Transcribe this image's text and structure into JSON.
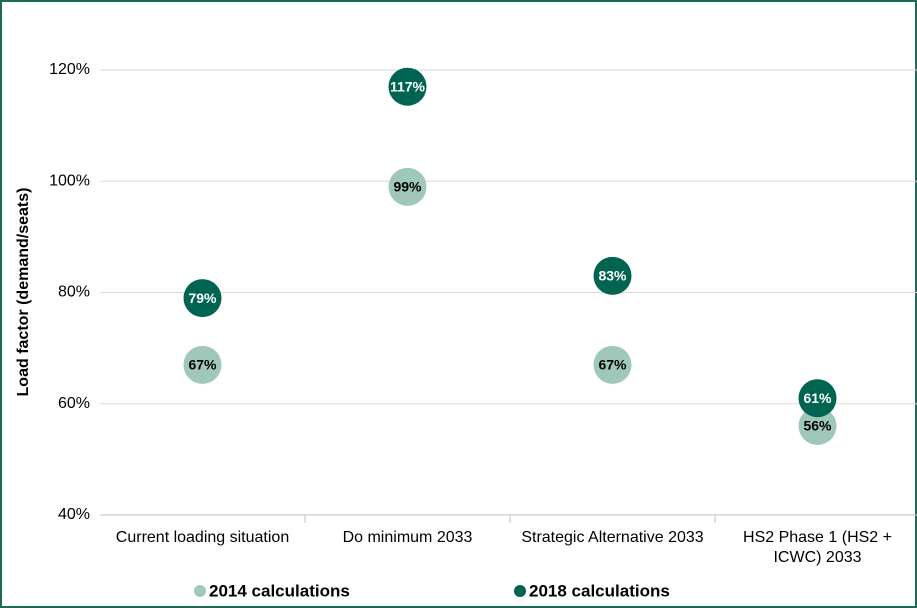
{
  "chart_data": {
    "type": "dot",
    "y_axis_label": "Load factor (demand/seats)",
    "categories": [
      "Current loading situation",
      "Do minimum 2033",
      "Strategic Alternative 2033",
      "HS2 Phase 1 (HS2 + ICWC) 2033"
    ],
    "series": [
      {
        "name": "2014 calculations",
        "color": "#9fc7ba",
        "label_color": "#000000",
        "values": [
          67,
          99,
          67,
          56
        ],
        "value_labels": [
          "67%",
          "99%",
          "67%",
          "56%"
        ]
      },
      {
        "name": "2018 calculations",
        "color": "#006450",
        "label_color": "#ffffff",
        "values": [
          79,
          117,
          83,
          61
        ],
        "value_labels": [
          "79%",
          "117%",
          "83%",
          "61%"
        ]
      }
    ],
    "ylim": [
      40,
      120
    ],
    "yticks": [
      {
        "value": 40,
        "label": "40%"
      },
      {
        "value": 60,
        "label": "60%"
      },
      {
        "value": 80,
        "label": "80%"
      },
      {
        "value": 100,
        "label": "100%"
      },
      {
        "value": 120,
        "label": "120%"
      }
    ],
    "grid": true,
    "legend": "bottom"
  }
}
